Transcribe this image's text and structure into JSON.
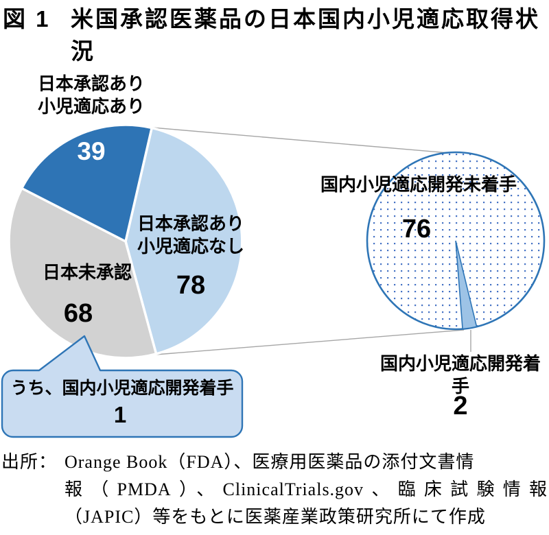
{
  "title": {
    "prefix": "図 1",
    "lines": [
      "米国承認医薬品の日本国内小児適応取得状",
      "況"
    ]
  },
  "colors": {
    "dark_blue": "#2E74B5",
    "light_blue": "#BDD7EE",
    "gray": "#D2D2D2",
    "wedge_blue": "#9DC3E6",
    "callout_fill": "#C9DCF1",
    "border_blue": "#2E75B6",
    "dot_blue": "#4472C4",
    "connector_gray": "#A6A6A6",
    "white_label": "#FFFFFF"
  },
  "chart_data": [
    {
      "type": "pie",
      "slices": [
        {
          "label": [
            "日本承認あり",
            "小児適応あり"
          ],
          "value": 39,
          "color": "#2E74B5"
        },
        {
          "label": [
            "日本承認あり",
            "小児適応なし"
          ],
          "value": 78,
          "color": "#BDD7EE"
        },
        {
          "label": "日本未承認",
          "value": 68,
          "color": "#D2D2D2"
        }
      ],
      "callout": {
        "text": "うち、国内小児適応開発着手",
        "value": 1,
        "attached_to": "日本未承認"
      }
    },
    {
      "type": "pie",
      "detail_of": "日本承認あり 小児適応なし",
      "slices": [
        {
          "label": "国内小児適応開発未着手",
          "value": 76,
          "fill": "dotted"
        },
        {
          "label": "国内小児適応開発着手",
          "value": 2,
          "color": "#9DC3E6"
        }
      ]
    }
  ],
  "source": {
    "label": "出所：",
    "lines": [
      "Orange Book（FDA）、医療用医薬品の添付文書情",
      "報（PMDA）、ClinicalTrials.gov、臨床試験情報",
      "（JAPIC）等をもとに医薬産業政策研究所にて作成"
    ]
  }
}
